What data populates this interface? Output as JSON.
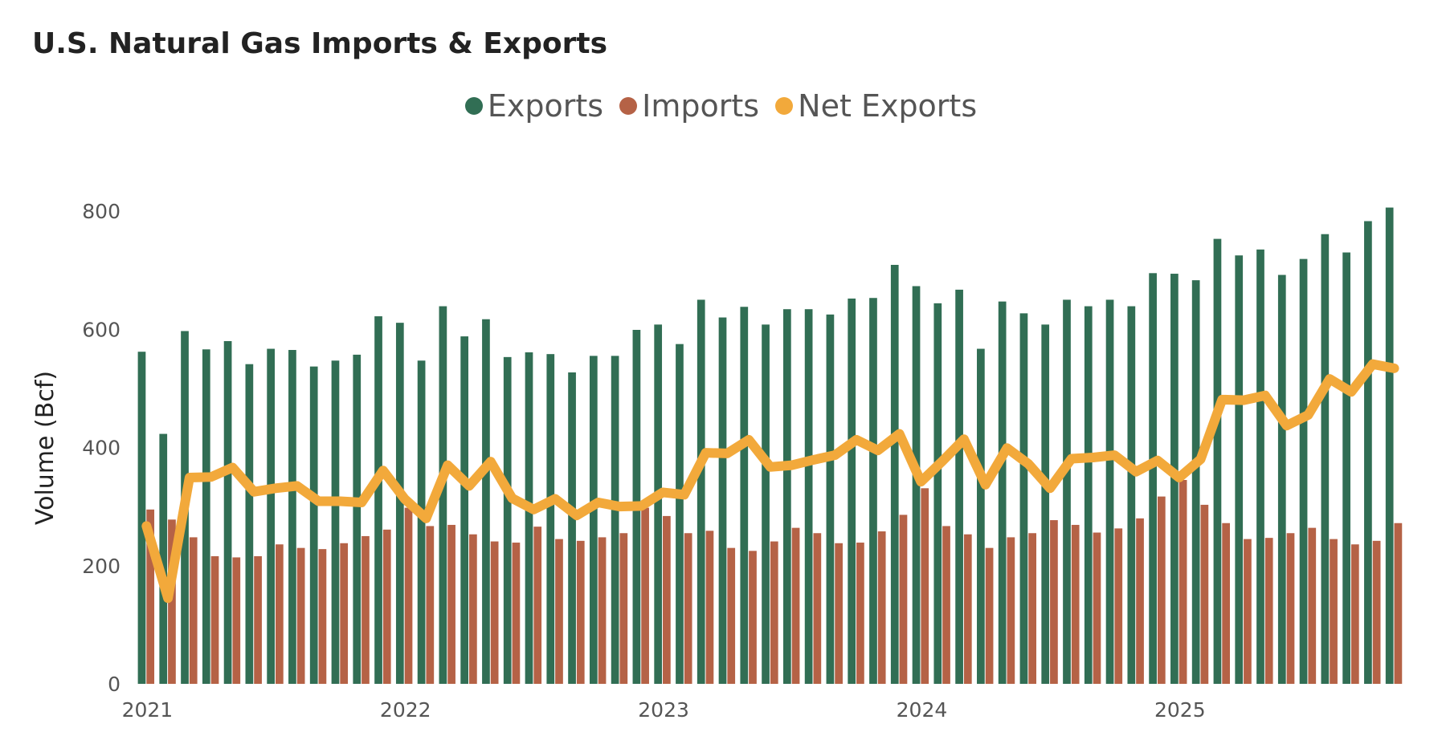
{
  "chart_data": {
    "type": "bar",
    "title": "U.S. Natural Gas Imports & Exports",
    "ylabel": "Volume (Bcf)",
    "xlabel": "",
    "ylim": [
      0,
      800
    ],
    "yticks": [
      0,
      200,
      400,
      600,
      800
    ],
    "xticks": [
      "2021",
      "2022",
      "2023",
      "2024",
      "2025"
    ],
    "start_month": "2021-01",
    "legend_placement": "top-center",
    "grid": false,
    "series": [
      {
        "name": "Exports",
        "type": "bar",
        "color": "#316e54",
        "values": [
          562,
          423,
          597,
          566,
          580,
          541,
          567,
          565,
          537,
          547,
          557,
          622,
          611,
          547,
          639,
          588,
          617,
          553,
          561,
          558,
          527,
          555,
          555,
          599,
          608,
          575,
          650,
          620,
          638,
          608,
          634,
          634,
          625,
          652,
          653,
          709,
          673,
          644,
          667,
          567,
          647,
          627,
          608,
          650,
          639,
          650,
          639,
          695,
          694,
          683,
          753,
          725,
          735,
          692,
          719,
          761,
          730,
          783,
          806
        ]
      },
      {
        "name": "Imports",
        "type": "bar",
        "color": "#b56246",
        "values": [
          295,
          278,
          248,
          216,
          214,
          216,
          236,
          230,
          228,
          238,
          250,
          261,
          298,
          267,
          269,
          253,
          241,
          239,
          266,
          245,
          242,
          248,
          255,
          298,
          284,
          255,
          259,
          230,
          225,
          241,
          264,
          255,
          238,
          239,
          258,
          286,
          331,
          267,
          253,
          230,
          248,
          255,
          277,
          269,
          256,
          263,
          280,
          317,
          345,
          303,
          272,
          245,
          247,
          255,
          264,
          245,
          236,
          242,
          272
        ]
      },
      {
        "name": "Net Exports",
        "type": "line",
        "color": "#f2a93b",
        "values": [
          267,
          145,
          349,
          350,
          366,
          325,
          331,
          335,
          309,
          309,
          307,
          361,
          313,
          280,
          370,
          335,
          376,
          314,
          295,
          313,
          285,
          307,
          300,
          301,
          324,
          320,
          391,
          390,
          413,
          367,
          370,
          379,
          387,
          413,
          395,
          423,
          342,
          377,
          414,
          337,
          399,
          372,
          331,
          381,
          383,
          387,
          359,
          378,
          349,
          380,
          481,
          480,
          488,
          437,
          455,
          516,
          494,
          541,
          534
        ]
      }
    ]
  }
}
